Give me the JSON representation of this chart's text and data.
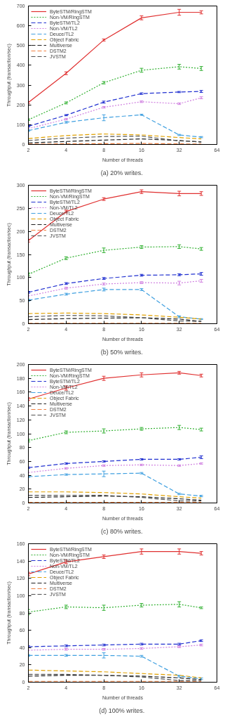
{
  "chart_data": [
    {
      "type": "line",
      "xlabel": "Number of threads",
      "ylabel": "Throughput (transaction/sec)",
      "annotations": [
        "(a)  20% writes."
      ],
      "log": "x",
      "xlim": [
        2,
        64
      ],
      "xticks": [
        2,
        4,
        8,
        16,
        32,
        64
      ],
      "ylim": [
        0,
        700
      ],
      "yticks": [
        0,
        100,
        200,
        300,
        400,
        500,
        600,
        700
      ],
      "legend": "top left",
      "x": [
        2,
        4,
        8,
        16,
        32,
        48
      ],
      "series": [
        {
          "name": "ByteSTM/RingSTM",
          "color": "#e03030",
          "line_style": "solid",
          "values": [
            212,
            360,
            528,
            640,
            668,
            668
          ],
          "errors": [
            5,
            7,
            5,
            10,
            15,
            8
          ]
        },
        {
          "name": "Non-VM/RingSTM",
          "color": "#30b030",
          "line_style": "dotted",
          "values": [
            125,
            210,
            312,
            375,
            393,
            384
          ],
          "errors": [
            4,
            5,
            6,
            10,
            12,
            10
          ]
        },
        {
          "name": "ByteSTM/TL2",
          "color": "#2030d0",
          "line_style": "dashed",
          "values": [
            92,
            148,
            214,
            257,
            265,
            268
          ],
          "errors": [
            4,
            3,
            5,
            4,
            3,
            5
          ]
        },
        {
          "name": "Non-VM/TL2",
          "color": "#d080e0",
          "line_style": "dotted",
          "values": [
            80,
            128,
            188,
            216,
            206,
            236
          ],
          "errors": [
            null,
            4,
            4,
            4,
            4,
            5
          ]
        },
        {
          "name": "Deuce/TL2",
          "color": "#40a0e0",
          "line_style": "dashed",
          "values": [
            70,
            112,
            135,
            150,
            48,
            37
          ],
          "errors": [
            4,
            4,
            15,
            3,
            3,
            3
          ]
        },
        {
          "name": "Object Fabric",
          "color": "#e0a000",
          "line_style": "dashed",
          "values": [
            30,
            45,
            53,
            48,
            35,
            28
          ]
        },
        {
          "name": "Multiverse",
          "color": "#202020",
          "line_style": "dashed",
          "values": [
            8,
            15,
            22,
            28,
            20,
            12
          ]
        },
        {
          "name": "DSTM2",
          "color": "#f08040",
          "line_style": "dashed",
          "values": [
            2,
            3,
            4,
            5,
            3,
            2
          ]
        },
        {
          "name": "JVSTM",
          "color": "#505050",
          "line_style": "dashed",
          "values": [
            20,
            32,
            40,
            42,
            18,
            14
          ]
        }
      ]
    },
    {
      "type": "line",
      "xlabel": "Number of threads",
      "ylabel": "Throughput (transaction/sec)",
      "annotations": [
        "(b)  50% writes."
      ],
      "log": "x",
      "xlim": [
        2,
        64
      ],
      "xticks": [
        2,
        4,
        8,
        16,
        32,
        64
      ],
      "ylim": [
        0,
        300
      ],
      "yticks": [
        0,
        50,
        100,
        150,
        200,
        250,
        300
      ],
      "legend": "top left",
      "x": [
        2,
        4,
        8,
        16,
        32,
        48
      ],
      "series": [
        {
          "name": "ByteSTM/RingSTM",
          "color": "#e03030",
          "line_style": "solid",
          "values": [
            180,
            243,
            270,
            286,
            282,
            282
          ],
          "errors": [
            3,
            3,
            3,
            4,
            5,
            4
          ]
        },
        {
          "name": "Non-VM/RingSTM",
          "color": "#30b030",
          "line_style": "dotted",
          "values": [
            107,
            142,
            159,
            166,
            167,
            162
          ],
          "errors": [
            3,
            3,
            5,
            3,
            4,
            3
          ]
        },
        {
          "name": "ByteSTM/TL2",
          "color": "#2030d0",
          "line_style": "dashed",
          "values": [
            68,
            87,
            98,
            105,
            106,
            108
          ],
          "errors": [
            2,
            2,
            2,
            2,
            2,
            3
          ]
        },
        {
          "name": "Non-VM/TL2",
          "color": "#d080e0",
          "line_style": "dotted",
          "values": [
            60,
            77,
            86,
            89,
            88,
            93
          ],
          "errors": [
            null,
            2,
            2,
            2,
            4,
            3
          ]
        },
        {
          "name": "Deuce/TL2",
          "color": "#40a0e0",
          "line_style": "dashed",
          "values": [
            51,
            64,
            74,
            74,
            15,
            10
          ],
          "errors": [
            2,
            2,
            3,
            2,
            2,
            1
          ]
        },
        {
          "name": "Object Fabric",
          "color": "#e0a000",
          "line_style": "dashed",
          "values": [
            22,
            23,
            22,
            19,
            14,
            10
          ]
        },
        {
          "name": "Multiverse",
          "color": "#202020",
          "line_style": "dashed",
          "values": [
            9,
            11,
            12,
            13,
            10,
            5
          ]
        },
        {
          "name": "DSTM2",
          "color": "#f08040",
          "line_style": "dashed",
          "values": [
            1,
            1,
            1,
            1,
            1,
            1
          ]
        },
        {
          "name": "JVSTM",
          "color": "#505050",
          "line_style": "dashed",
          "values": [
            15,
            18,
            17,
            13,
            6,
            5
          ]
        }
      ]
    },
    {
      "type": "line",
      "xlabel": "Number of threads",
      "ylabel": "Throughput (transaction/sec)",
      "annotations": [
        "(c)  80% writes."
      ],
      "log": "x",
      "xlim": [
        2,
        64
      ],
      "xticks": [
        2,
        4,
        8,
        16,
        32,
        64
      ],
      "ylim": [
        0,
        200
      ],
      "yticks": [
        0,
        20,
        40,
        60,
        80,
        100,
        120,
        140,
        160,
        180,
        200
      ],
      "legend": "top left",
      "x": [
        2,
        4,
        8,
        16,
        32,
        48
      ],
      "series": [
        {
          "name": "ByteSTM/RingSTM",
          "color": "#e03030",
          "line_style": "solid",
          "values": [
            150,
            166,
            180,
            185,
            188,
            184
          ],
          "errors": [
            2,
            3,
            3,
            3,
            2,
            2
          ]
        },
        {
          "name": "Non-VM/RingSTM",
          "color": "#30b030",
          "line_style": "dotted",
          "values": [
            90,
            102,
            104,
            107,
            109,
            106
          ],
          "errors": [
            2,
            2,
            3,
            2,
            3,
            2
          ]
        },
        {
          "name": "ByteSTM/TL2",
          "color": "#2030d0",
          "line_style": "dashed",
          "values": [
            51,
            57,
            60,
            63,
            63,
            66
          ],
          "errors": [
            1,
            1,
            1,
            1,
            1,
            2
          ]
        },
        {
          "name": "Non-VM/TL2",
          "color": "#d080e0",
          "line_style": "dotted",
          "values": [
            44,
            50,
            54,
            55,
            54,
            57
          ],
          "errors": [
            null,
            1,
            1,
            1,
            1,
            1
          ]
        },
        {
          "name": "Deuce/TL2",
          "color": "#40a0e0",
          "line_style": "dashed",
          "values": [
            38,
            41,
            42,
            43,
            13,
            10
          ],
          "errors": [
            1,
            1,
            4,
            1,
            1,
            1
          ]
        },
        {
          "name": "Object Fabric",
          "color": "#e0a000",
          "line_style": "dashed",
          "values": [
            16,
            16,
            15,
            13,
            9,
            7
          ]
        },
        {
          "name": "Multiverse",
          "color": "#202020",
          "line_style": "dashed",
          "values": [
            8,
            9,
            10,
            9,
            6,
            4
          ]
        },
        {
          "name": "DSTM2",
          "color": "#f08040",
          "line_style": "dashed",
          "values": [
            1,
            1,
            1,
            1,
            1,
            1
          ]
        },
        {
          "name": "JVSTM",
          "color": "#505050",
          "line_style": "dashed",
          "values": [
            11,
            11,
            11,
            8,
            3,
            3
          ]
        }
      ]
    },
    {
      "type": "line",
      "xlabel": "Number of threads",
      "ylabel": "Throughput (transaction/sec)",
      "annotations": [
        "(d)  100% writes."
      ],
      "log": "x",
      "xlim": [
        2,
        64
      ],
      "xticks": [
        2,
        4,
        8,
        16,
        32,
        64
      ],
      "ylim": [
        0,
        160
      ],
      "yticks": [
        0,
        20,
        40,
        60,
        80,
        100,
        120,
        140,
        160
      ],
      "legend": "top left",
      "x": [
        2,
        4,
        8,
        16,
        32,
        48
      ],
      "series": [
        {
          "name": "ByteSTM/RingSTM",
          "color": "#e03030",
          "line_style": "solid",
          "values": [
            125,
            139,
            145,
            151,
            151,
            149
          ],
          "errors": [
            2,
            2,
            2,
            3,
            3,
            2
          ]
        },
        {
          "name": "Non-VM/RingSTM",
          "color": "#30b030",
          "line_style": "dotted",
          "values": [
            81,
            87,
            86,
            89,
            90,
            86
          ],
          "errors": [
            3,
            2,
            3,
            2,
            3,
            1
          ]
        },
        {
          "name": "ByteSTM/TL2",
          "color": "#2030d0",
          "line_style": "dashed",
          "values": [
            41,
            42,
            43,
            44,
            44,
            48
          ],
          "errors": [
            1,
            1,
            1,
            1,
            1,
            1
          ]
        },
        {
          "name": "Non-VM/TL2",
          "color": "#d080e0",
          "line_style": "dotted",
          "values": [
            37,
            38,
            38,
            39,
            41,
            43
          ],
          "errors": [
            null,
            1,
            1,
            1,
            1,
            1
          ]
        },
        {
          "name": "Deuce/TL2",
          "color": "#40a0e0",
          "line_style": "dashed",
          "values": [
            31,
            31,
            31,
            30,
            7,
            4
          ],
          "errors": [
            1,
            1,
            3,
            1,
            1,
            1
          ]
        },
        {
          "name": "Object Fabric",
          "color": "#e0a000",
          "line_style": "dashed",
          "values": [
            14,
            13,
            12,
            10,
            8,
            5
          ]
        },
        {
          "name": "Multiverse",
          "color": "#202020",
          "line_style": "dashed",
          "values": [
            7,
            8,
            8,
            7,
            5,
            3
          ]
        },
        {
          "name": "DSTM2",
          "color": "#f08040",
          "line_style": "dashed",
          "values": [
            1,
            1,
            1,
            1,
            1,
            1
          ]
        },
        {
          "name": "JVSTM",
          "color": "#505050",
          "line_style": "dashed",
          "values": [
            9,
            9,
            8,
            6,
            2,
            2
          ]
        }
      ]
    }
  ]
}
